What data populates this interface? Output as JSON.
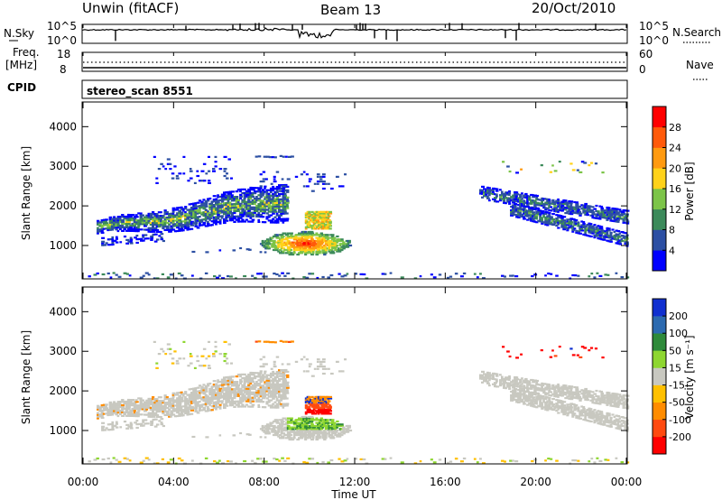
{
  "header": {
    "station": "Unwin (fitACF)",
    "beam": "Beam 13",
    "date": "20/Oct/2010"
  },
  "sky_panel": {
    "left_label": "N.Sky",
    "right_label": "N.Search",
    "left_ticks": [
      "10^5",
      "10^0"
    ],
    "right_ticks": [
      "10^5",
      "10^0"
    ]
  },
  "freq_panel": {
    "left_label_line1": "Freq.",
    "left_label_line2": "[MHz]",
    "right_label": "Nave",
    "left_ticks": [
      "18",
      "8"
    ],
    "right_ticks": [
      "60",
      "0"
    ]
  },
  "cpid": {
    "label": "CPID",
    "value": "stereo_scan 8551"
  },
  "x_axis": {
    "label": "Time UT",
    "ticks": [
      "00:00",
      "04:00",
      "08:00",
      "12:00",
      "16:00",
      "20:00",
      "00:00"
    ]
  },
  "power_colorbar": {
    "label": "Power [dB]",
    "ticks": [
      "4",
      "8",
      "12",
      "16",
      "20",
      "24",
      "28"
    ],
    "colors": [
      "#0000ff",
      "#2c4fa3",
      "#3c8a5a",
      "#7cc448",
      "#ffd21a",
      "#ff9a10",
      "#ff5a0a",
      "#ff0000"
    ]
  },
  "velocity_colorbar": {
    "label": "Velocity [m s⁻¹]",
    "ticks": [
      "200",
      "100",
      "50",
      "15",
      "-15",
      "-50",
      "-100",
      "-200"
    ],
    "colors": [
      "#1030d0",
      "#2c6ab0",
      "#2e8a3a",
      "#8ed630",
      "#c8c8c0",
      "#ffc000",
      "#ff8c00",
      "#ff4a10",
      "#ff0000"
    ]
  },
  "chart_data": [
    {
      "type": "heatmap",
      "title": "Power",
      "xlabel": "Time UT",
      "ylabel": "Slant Range [km]",
      "xlim": [
        0,
        24
      ],
      "ylim": [
        180,
        4600
      ],
      "y_ticks": [
        1000,
        2000,
        3000,
        4000
      ],
      "colorbar": {
        "label": "Power [dB]",
        "range": [
          2,
          30
        ]
      },
      "regions": [
        {
          "name": "evening arc",
          "t_start": 0.6,
          "t_end": 9.0,
          "r_start": 1350,
          "r_end": 2250,
          "value": 10
        },
        {
          "name": "upper echoes",
          "t_start": 2.9,
          "t_end": 6.6,
          "r_start": 2550,
          "r_end": 3300,
          "value": 6
        },
        {
          "name": "pre-midnight blob",
          "t_start": 7.6,
          "t_end": 11.8,
          "r_start": 750,
          "r_end": 1400,
          "value": 22
        },
        {
          "name": "dawn arc 1",
          "t_start": 17.5,
          "t_end": 24.0,
          "r_start": 1500,
          "r_end": 2500,
          "value": 8
        },
        {
          "name": "dawn arc 2",
          "t_start": 18.8,
          "t_end": 24.0,
          "r_start": 850,
          "r_end": 2000,
          "value": 10
        },
        {
          "name": "near-range strip",
          "t_start": 0.0,
          "t_end": 24.0,
          "r_start": 180,
          "r_end": 300,
          "value": 6
        }
      ]
    },
    {
      "type": "heatmap",
      "title": "Velocity",
      "xlabel": "Time UT",
      "ylabel": "Slant Range [km]",
      "xlim": [
        0,
        24
      ],
      "ylim": [
        180,
        4600
      ],
      "y_ticks": [
        1000,
        2000,
        3000,
        4000
      ],
      "colorbar": {
        "label": "Velocity [m s⁻¹]",
        "range": [
          -200,
          200
        ]
      },
      "regions": [
        {
          "name": "evening arc",
          "t_start": 0.6,
          "t_end": 9.0,
          "r_start": 1350,
          "r_end": 2250,
          "value": 0
        },
        {
          "name": "pre-midnight blob",
          "t_start": 7.6,
          "t_end": 11.8,
          "r_start": 750,
          "r_end": 1400,
          "value": 0
        },
        {
          "name": "green core",
          "t_start": 9.0,
          "t_end": 11.4,
          "r_start": 1050,
          "r_end": 1350,
          "value": 40
        },
        {
          "name": "red core",
          "t_start": 9.7,
          "t_end": 11.0,
          "r_start": 1500,
          "r_end": 1800,
          "value": -200
        },
        {
          "name": "dawn arcs",
          "t_start": 17.5,
          "t_end": 24.0,
          "r_start": 850,
          "r_end": 2500,
          "value": 0
        },
        {
          "name": "dawn high echoes",
          "t_start": 18.4,
          "t_end": 23.6,
          "r_start": 2800,
          "r_end": 3200,
          "value": -150
        }
      ]
    }
  ]
}
